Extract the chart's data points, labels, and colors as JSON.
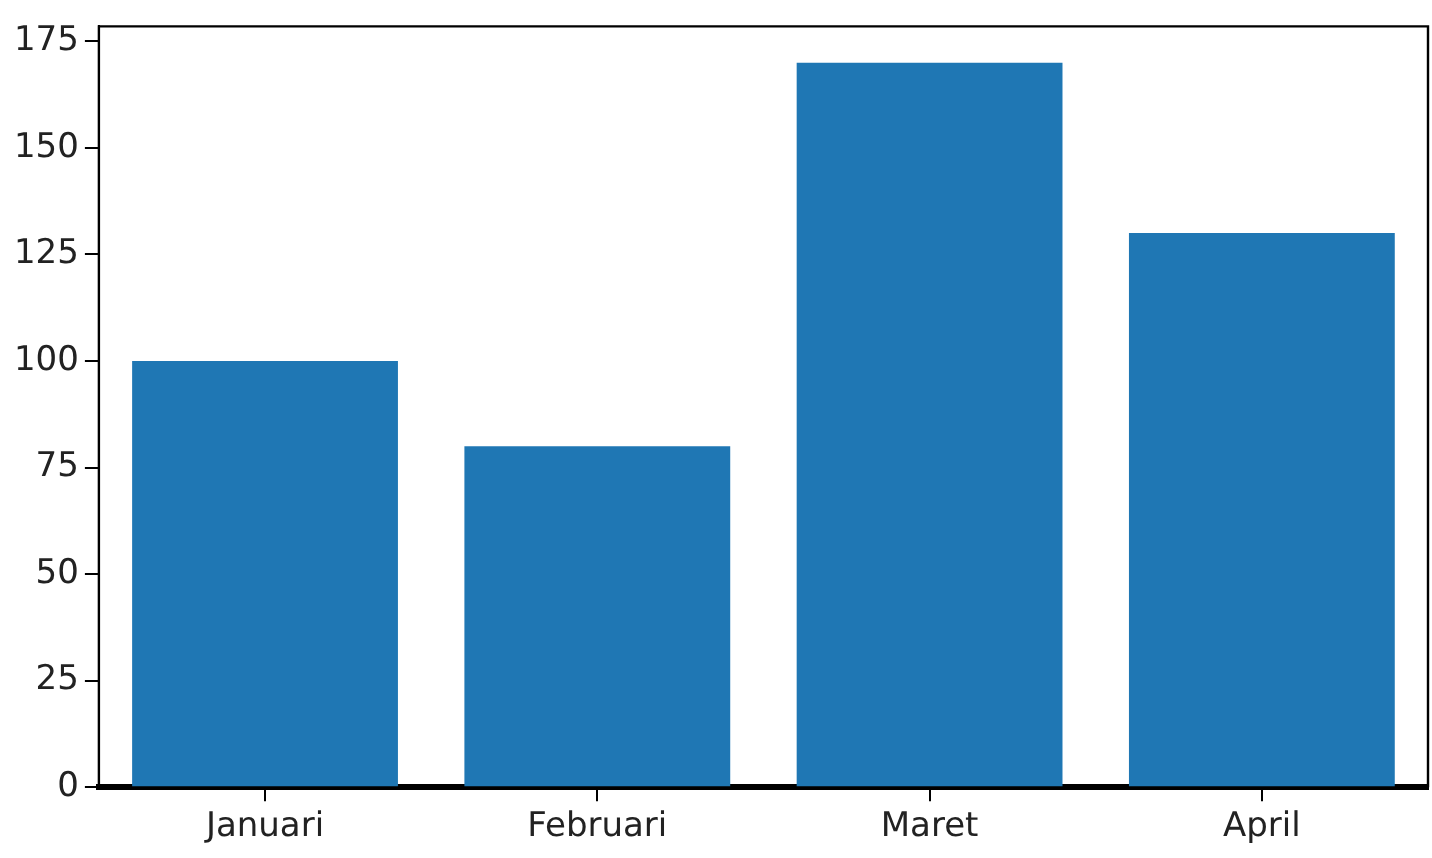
{
  "chart_data": {
    "type": "bar",
    "categories": [
      "Januari",
      "Februari",
      "Maret",
      "April"
    ],
    "values": [
      100,
      80,
      170,
      130
    ],
    "color": "#1f77b4",
    "ylim": [
      0,
      178.5
    ],
    "yticks": [
      0,
      25,
      50,
      75,
      100,
      125,
      150,
      175
    ],
    "grid": false,
    "legend": false
  }
}
